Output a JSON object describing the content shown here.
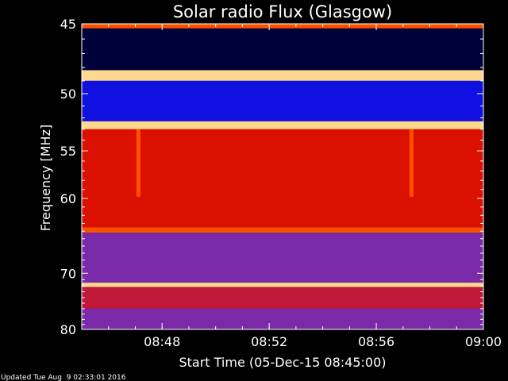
{
  "chart_data": {
    "type": "heatmap",
    "title": "Solar radio Flux (Glasgow)",
    "xlabel": "Start Time (05-Dec-15 08:45:00)",
    "ylabel": "Frequency [MHz]",
    "x_ticks": [
      "08:48",
      "08:52",
      "08:56",
      "09:00"
    ],
    "y_ticks": [
      "45",
      "50",
      "55",
      "60",
      "70",
      "80"
    ],
    "y_tick_values": [
      45,
      50,
      55,
      60,
      70,
      80
    ],
    "x_range": [
      "08:45:00",
      "09:00:00"
    ],
    "y_range": [
      45,
      80
    ],
    "y_scale": "reciprocal",
    "colormap": [
      "#000040",
      "#0000ff",
      "#7f3fbf",
      "#ff0000",
      "#ffaa00",
      "#ffffff"
    ],
    "frequency_bands_mhz": [
      {
        "from": 45.0,
        "to": 45.3,
        "level": "high"
      },
      {
        "from": 45.3,
        "to": 48.2,
        "level": "very-low"
      },
      {
        "from": 48.2,
        "to": 49.0,
        "level": "very-high"
      },
      {
        "from": 49.0,
        "to": 52.3,
        "level": "low"
      },
      {
        "from": 52.3,
        "to": 53.0,
        "level": "very-high"
      },
      {
        "from": 53.0,
        "to": 63.5,
        "level": "medium-high"
      },
      {
        "from": 63.5,
        "to": 64.2,
        "level": "high"
      },
      {
        "from": 64.2,
        "to": 71.5,
        "level": "medium-low"
      },
      {
        "from": 71.5,
        "to": 72.2,
        "level": "very-high"
      },
      {
        "from": 72.2,
        "to": 76.0,
        "level": "medium"
      },
      {
        "from": 76.0,
        "to": 80.0,
        "level": "medium-low"
      }
    ],
    "bursts": [
      {
        "time": "08:47:06",
        "from": 53.0,
        "to": 59.8,
        "level": "high"
      },
      {
        "time": "08:57:18",
        "from": 53.0,
        "to": 59.8,
        "level": "high"
      }
    ]
  },
  "footer": {
    "updated": "Updated Tue Aug  9 02:33:01 2016"
  }
}
